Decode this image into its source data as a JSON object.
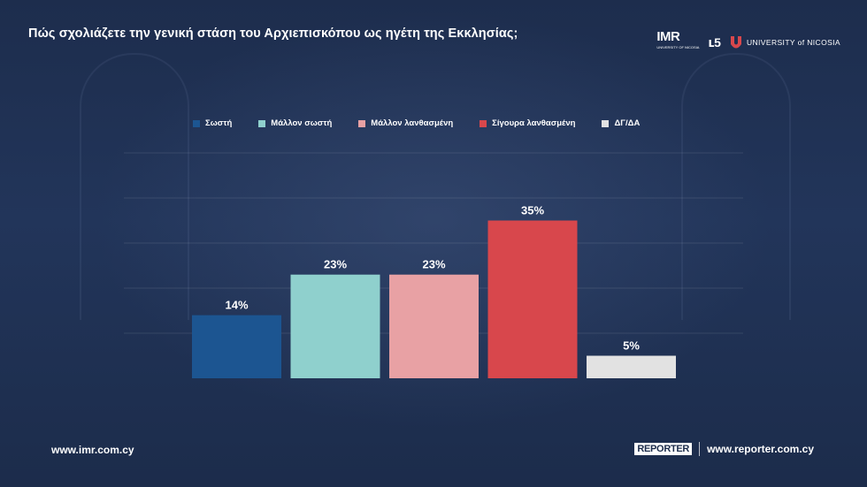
{
  "title": "Πώς σχολιάζετε την γενική στάση του Αρχιεπισκόπου ως ηγέτη της Εκκλησίας;",
  "logos": {
    "imr_text": "IMR",
    "imr_subtext": "UNIVERSITY OF NICOSIA",
    "mark_text": "ւ5",
    "university_text": "UNIVERSITY of NICOSIA"
  },
  "colors": {
    "background": "#1b2b4a",
    "sosti": "#1c5591",
    "mallon_sosti": "#8fd0cd",
    "mallon_lanthasmeni": "#e8a1a4",
    "sigoura_lanthasmeni": "#d8474c",
    "dg_da": "#e2e2e2"
  },
  "chart_data": {
    "type": "bar",
    "title": "Πώς σχολιάζετε την γενική στάση του Αρχιεπισκόπου ως ηγέτη της Εκκλησίας;",
    "categories": [
      "Σωστή",
      "Μάλλον σωστή",
      "Μάλλον λανθασμένη",
      "Σίγουρα λανθασμένη",
      "ΔΓ/ΔΑ"
    ],
    "values": [
      14,
      23,
      23,
      35,
      5
    ],
    "labels": [
      "14%",
      "23%",
      "23%",
      "35%",
      "5%"
    ],
    "colors": [
      "#1c5591",
      "#8fd0cd",
      "#e8a1a4",
      "#d8474c",
      "#e2e2e2"
    ],
    "legend_position": "top",
    "ylim": [
      0,
      50
    ],
    "grid": true
  },
  "footer": {
    "left_url": "www.imr.com.cy",
    "reporter_badge": "REPORTER",
    "right_url": "www.reporter.com.cy"
  }
}
